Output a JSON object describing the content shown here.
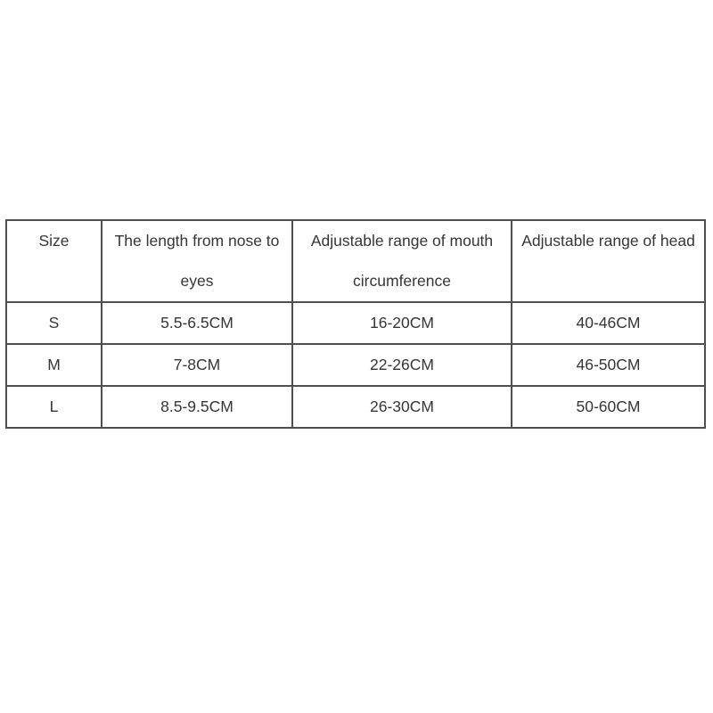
{
  "page": {
    "background": "#ffffff"
  },
  "size_chart": {
    "columns": [
      "Size",
      "The length from nose to eyes",
      "Adjustable range of mouth circumference",
      "Adjustable range of head"
    ],
    "rows": [
      {
        "size": "S",
        "nose_to_eyes": "5.5-6.5CM",
        "mouth_circumference": "16-20CM",
        "head_circumference": "40-46CM"
      },
      {
        "size": "M",
        "nose_to_eyes": "7-8CM",
        "mouth_circumference": "22-26CM",
        "head_circumference": "46-50CM"
      },
      {
        "size": "L",
        "nose_to_eyes": "8.5-9.5CM",
        "mouth_circumference": "26-30CM",
        "head_circumference": "50-60CM"
      }
    ],
    "colors": {
      "border": "#4f4f4f",
      "text": "#363636",
      "background": "#ffffff"
    }
  }
}
